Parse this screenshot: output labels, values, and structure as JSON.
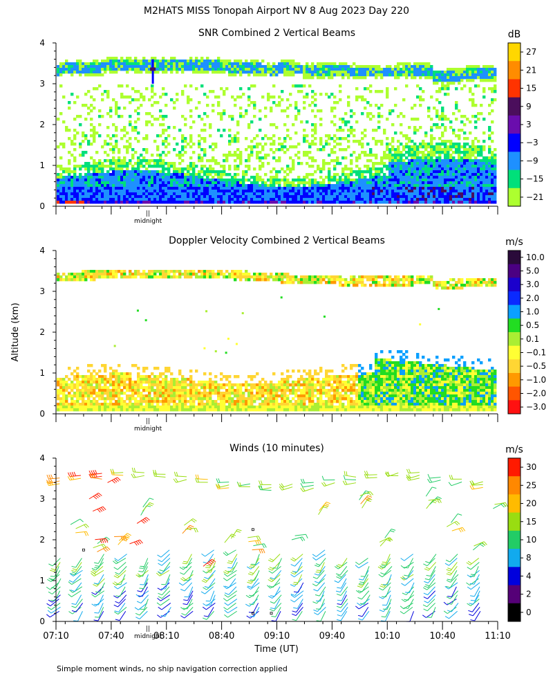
{
  "page_title": "M2HATS MISS Tonopah Airport NV   8 Aug 2023 Day 220",
  "y_axis_label": "Altitude (km)",
  "x_axis_label": "Time (UT)",
  "footnote": "Simple moment winds, no ship navigation correction applied",
  "chart_data": [
    {
      "type": "heatmap",
      "title": "SNR Combined 2 Vertical Beams",
      "xlim": [
        0,
        240
      ],
      "ylim": [
        0,
        4
      ],
      "y_ticks": [
        "0",
        "1",
        "2",
        "3",
        "4"
      ],
      "midnight_marker": {
        "label": "midnight",
        "tick": "||",
        "x": 50
      },
      "colorbar": {
        "unit": "dB",
        "labels": [
          "27",
          "21",
          "15",
          "9",
          "3",
          "−3",
          "−9",
          "−15",
          "−21"
        ],
        "colors": [
          "#FFD700",
          "#FF8C00",
          "#FF3300",
          "#4B0E5C",
          "#6A0DAD",
          "#0000FF",
          "#1E90FF",
          "#00E07A",
          "#ADFF2F"
        ]
      },
      "features": [
        {
          "name": "upper echo layer",
          "altitude_km": [
            3.1,
            3.6
          ],
          "snr_db": [
            -21,
            -9
          ]
        },
        {
          "name": "scattered weak echoes",
          "altitude_km": [
            1.0,
            3.0
          ],
          "snr_db": [
            -21,
            -15
          ]
        },
        {
          "name": "boundary layer",
          "altitude_km": [
            0.1,
            1.2
          ],
          "snr_db": [
            -15,
            3
          ]
        },
        {
          "name": "near-surface strong echo",
          "altitude_km": [
            0.1,
            0.4
          ],
          "snr_db": [
            9,
            27
          ]
        }
      ]
    },
    {
      "type": "heatmap",
      "title": "Doppler Velocity Combined 2 Vertical Beams",
      "xlim": [
        0,
        240
      ],
      "ylim": [
        0,
        4
      ],
      "y_ticks": [
        "0",
        "1",
        "2",
        "3",
        "4"
      ],
      "midnight_marker": {
        "label": "midnight",
        "tick": "||",
        "x": 50
      },
      "colorbar": {
        "unit": "m/s",
        "labels": [
          "10.0",
          "5.0",
          "3.0",
          "2.0",
          "1.0",
          "0.5",
          "0.1",
          "−0.1",
          "−0.5",
          "−1.0",
          "−2.0",
          "−3.0"
        ],
        "colors": [
          "#2A0A3A",
          "#4B0082",
          "#1B00CC",
          "#0A2AFF",
          "#0AA0FF",
          "#22DD22",
          "#AAEE33",
          "#FFFF33",
          "#FFD633",
          "#FF9900",
          "#FF5500",
          "#FF1111"
        ]
      },
      "features": [
        {
          "name": "upper echo layer",
          "altitude_km": [
            3.2,
            3.5
          ],
          "velocity_ms": [
            -0.5,
            1.0
          ]
        },
        {
          "name": "boundary layer",
          "altitude_km": [
            0.1,
            1.0
          ],
          "velocity_ms": [
            -1.0,
            0.5
          ]
        },
        {
          "name": "late-period updrafts",
          "altitude_km": [
            0.3,
            1.6
          ],
          "velocity_ms": [
            0.1,
            2.0
          ]
        }
      ]
    },
    {
      "type": "scatter",
      "title": "Winds (10 minutes)",
      "xlim": [
        0,
        240
      ],
      "ylim": [
        0,
        4
      ],
      "x_tick_labels": [
        "07:10",
        "07:40",
        "08:10",
        "08:40",
        "09:10",
        "09:40",
        "10:10",
        "10:40",
        "11:10"
      ],
      "x_tick_values": [
        0,
        30,
        60,
        90,
        120,
        150,
        180,
        210,
        240
      ],
      "y_ticks": [
        "0",
        "1",
        "2",
        "3",
        "4"
      ],
      "midnight_marker": {
        "label": "midnight",
        "tick": "||",
        "x": 50
      },
      "colorbar": {
        "unit": "m/s",
        "labels": [
          "30",
          "25",
          "20",
          "15",
          "10",
          "8",
          "4",
          "2",
          "0"
        ],
        "colors": [
          "#FF1A00",
          "#FF8800",
          "#FFBB00",
          "#99DD11",
          "#22CC66",
          "#11AAEE",
          "#0000DD",
          "#550077",
          "#000000"
        ]
      },
      "profile_times_min": [
        3,
        15,
        27,
        39,
        51,
        63,
        75,
        87,
        99,
        111,
        123,
        135,
        147,
        159,
        171,
        183,
        195,
        207,
        219,
        231
      ],
      "features": [
        {
          "name": "lower profile winds",
          "altitude_km": [
            0.2,
            1.8
          ],
          "speed_ms": [
            2,
            15
          ]
        },
        {
          "name": "mid-level strong winds",
          "altitude_km": [
            1.0,
            4.0
          ],
          "speed_ms": [
            20,
            30
          ]
        },
        {
          "name": "upper level winds",
          "altitude_km": [
            2.5,
            3.9
          ],
          "speed_ms": [
            10,
            20
          ]
        }
      ]
    }
  ]
}
